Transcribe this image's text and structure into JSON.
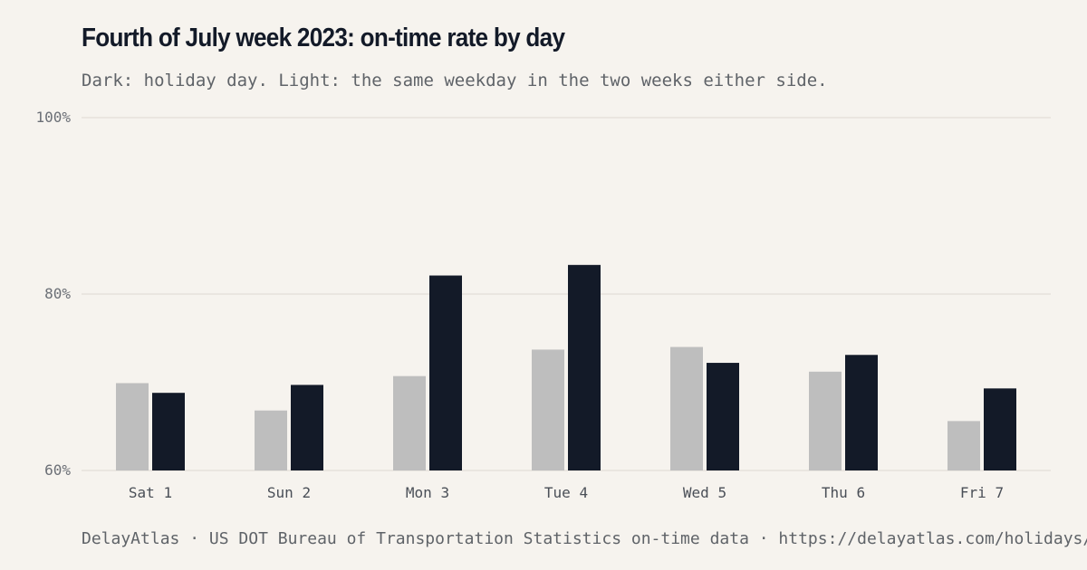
{
  "title": "Fourth of July week 2023: on-time rate by day",
  "subtitle": "Dark: holiday day. Light: the same weekday in the two weeks either side.",
  "footer": "DelayAtlas · US DOT Bureau of Transportation Statistics on-time data · https://delayatlas.com/holidays/",
  "colors": {
    "background": "#f6f3ee",
    "holiday": "#131a28",
    "comparison": "#bebebe",
    "grid": "#e6e2dc"
  },
  "chart_data": {
    "type": "bar",
    "categories": [
      "Sat 1",
      "Sun 2",
      "Mon 3",
      "Tue 4",
      "Wed 5",
      "Thu 6",
      "Fri 7"
    ],
    "series": [
      {
        "key": "comparison",
        "values": [
          69.9,
          66.8,
          70.7,
          73.7,
          74.0,
          71.2,
          65.6
        ]
      },
      {
        "key": "holiday",
        "values": [
          68.8,
          69.7,
          82.1,
          83.3,
          72.2,
          73.1,
          69.3
        ]
      }
    ],
    "ylim": [
      60,
      100
    ],
    "yticks": [
      60,
      80,
      100
    ],
    "ytick_labels": [
      "60%",
      "80%",
      "100%"
    ],
    "grid": true
  }
}
